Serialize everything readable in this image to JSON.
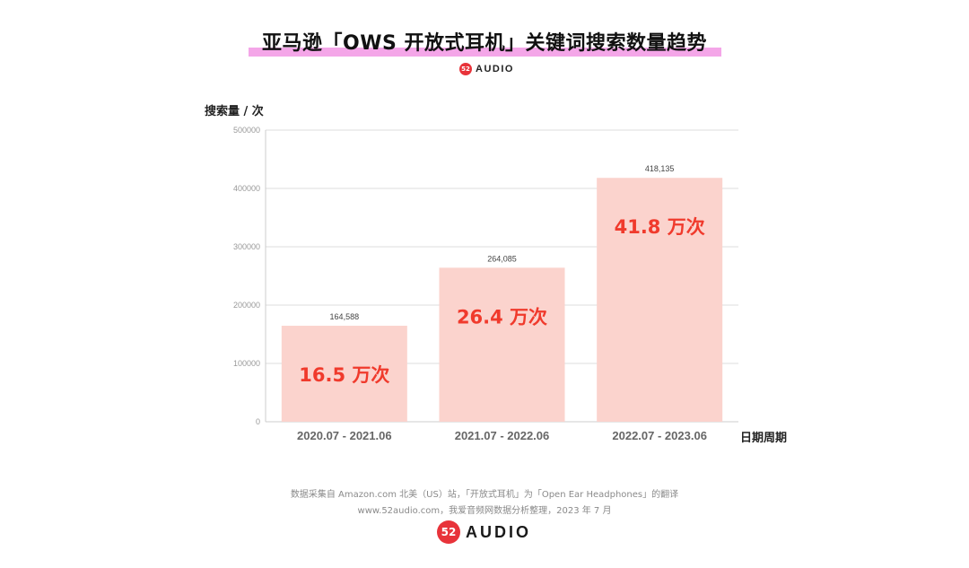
{
  "title": "亚马逊「OWS 开放式耳机」关键词搜索数量趋势",
  "logo": {
    "mark": "52",
    "word": "AUDIO"
  },
  "colors": {
    "bar": "#fbd3cd",
    "highlight": "#f4a6e8",
    "inlabel": "#f03a2c",
    "grid": "#dddddd"
  },
  "chart_data": {
    "type": "bar",
    "title": "亚马逊「OWS 开放式耳机」关键词搜索数量趋势",
    "ylabel": "搜索量 / 次",
    "xlabel": "日期周期",
    "ylim": [
      0,
      500000
    ],
    "yticks": [
      0,
      100000,
      200000,
      300000,
      400000,
      500000
    ],
    "ytick_labels": [
      "0",
      "100000",
      "200000",
      "300000",
      "400000",
      "500000"
    ],
    "grid": true,
    "categories": [
      "2020.07 - 2021.06",
      "2021.07 - 2022.06",
      "2022.07 - 2023.06"
    ],
    "values": [
      164588,
      264085,
      418135
    ],
    "data_labels": [
      "164,588",
      "264,085",
      "418,135"
    ],
    "inside_labels": [
      "16.5 万次",
      "26.4 万次",
      "41.8 万次"
    ]
  },
  "footer": {
    "line1": "数据采集自 Amazon.com 北美（US）站，「开放式耳机」为「Open Ear Headphones」的翻译",
    "line2": "www.52audio.com，我爱音频网数据分析整理，2023 年 7 月"
  }
}
